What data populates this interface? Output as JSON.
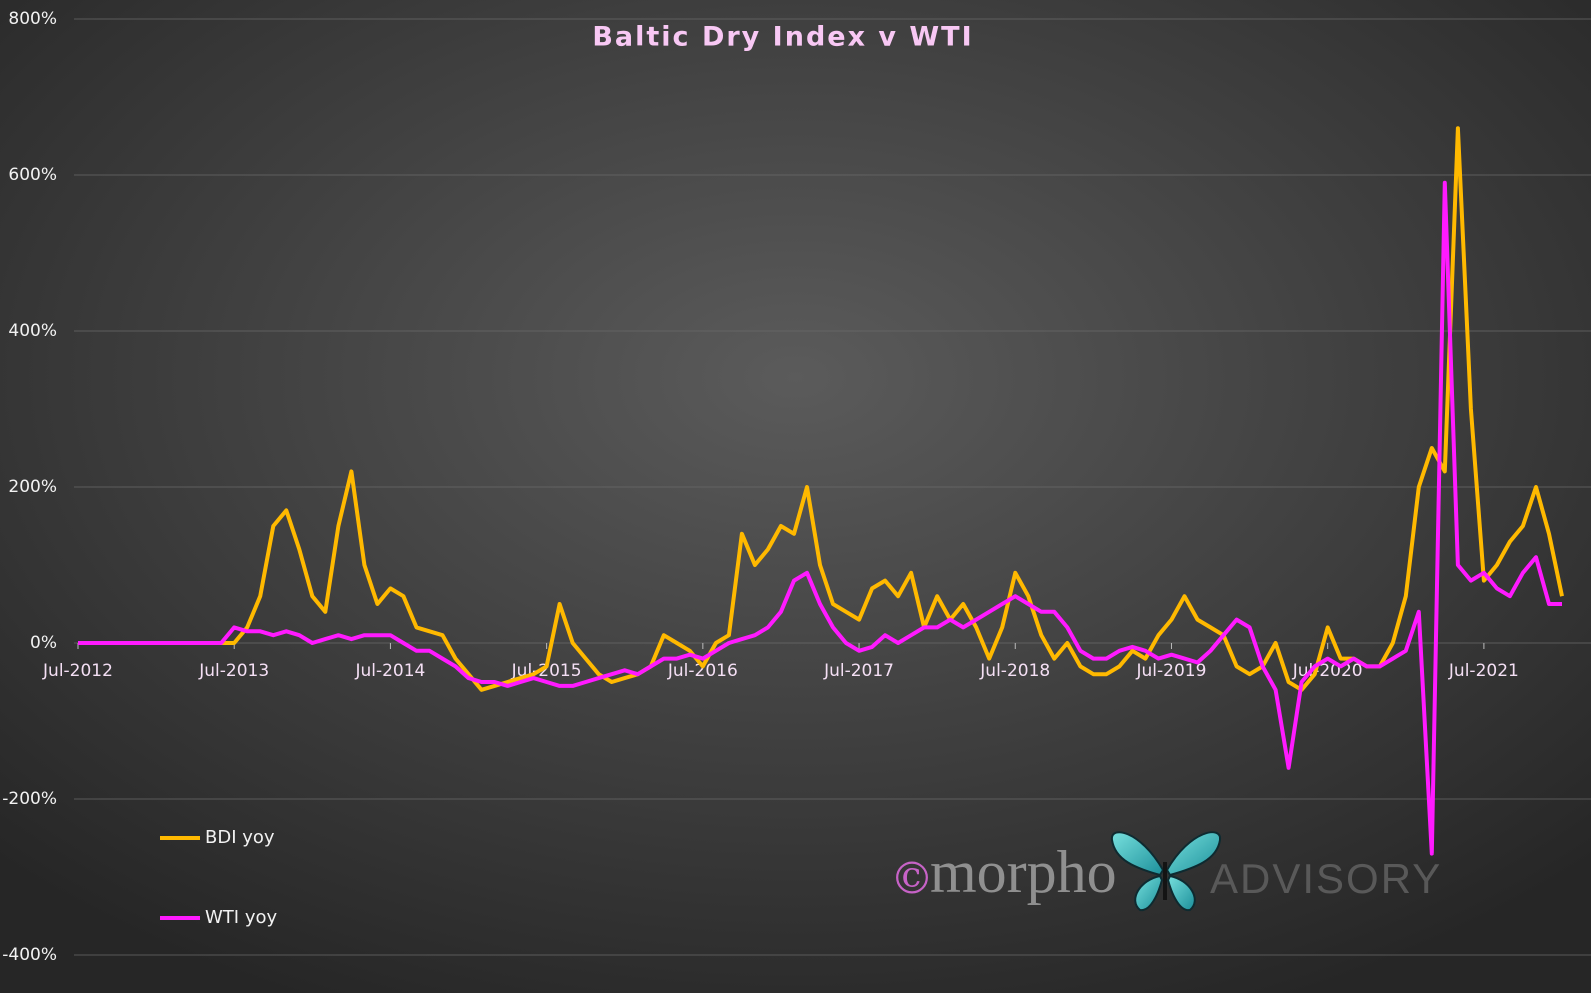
{
  "chart_data": {
    "type": "line",
    "title": "Baltic Dry Index v WTI",
    "x": [
      "2012-07",
      "2012-08",
      "2012-09",
      "2012-10",
      "2012-11",
      "2012-12",
      "2013-01",
      "2013-02",
      "2013-03",
      "2013-04",
      "2013-05",
      "2013-06",
      "2013-07",
      "2013-08",
      "2013-09",
      "2013-10",
      "2013-11",
      "2013-12",
      "2014-01",
      "2014-02",
      "2014-03",
      "2014-04",
      "2014-05",
      "2014-06",
      "2014-07",
      "2014-08",
      "2014-09",
      "2014-10",
      "2014-11",
      "2014-12",
      "2015-01",
      "2015-02",
      "2015-03",
      "2015-04",
      "2015-05",
      "2015-06",
      "2015-07",
      "2015-08",
      "2015-09",
      "2015-10",
      "2015-11",
      "2015-12",
      "2016-01",
      "2016-02",
      "2016-03",
      "2016-04",
      "2016-05",
      "2016-06",
      "2016-07",
      "2016-08",
      "2016-09",
      "2016-10",
      "2016-11",
      "2016-12",
      "2017-01",
      "2017-02",
      "2017-03",
      "2017-04",
      "2017-05",
      "2017-06",
      "2017-07",
      "2017-08",
      "2017-09",
      "2017-10",
      "2017-11",
      "2017-12",
      "2018-01",
      "2018-02",
      "2018-03",
      "2018-04",
      "2018-05",
      "2018-06",
      "2018-07",
      "2018-08",
      "2018-09",
      "2018-10",
      "2018-11",
      "2018-12",
      "2019-01",
      "2019-02",
      "2019-03",
      "2019-04",
      "2019-05",
      "2019-06",
      "2019-07",
      "2019-08",
      "2019-09",
      "2019-10",
      "2019-11",
      "2019-12",
      "2020-01",
      "2020-02",
      "2020-03",
      "2020-04",
      "2020-05",
      "2020-06",
      "2020-07",
      "2020-08",
      "2020-09",
      "2020-10",
      "2020-11",
      "2020-12",
      "2021-01",
      "2021-02",
      "2021-03",
      "2021-04",
      "2021-05",
      "2021-06",
      "2021-07",
      "2021-08",
      "2021-09",
      "2021-10",
      "2021-11",
      "2021-12",
      "2022-01"
    ],
    "series": [
      {
        "name": "BDI yoy",
        "color": "#ffb900",
        "values": [
          0,
          0,
          0,
          0,
          0,
          0,
          0,
          0,
          0,
          0,
          0,
          0,
          0,
          20,
          60,
          150,
          170,
          120,
          60,
          40,
          150,
          220,
          100,
          50,
          70,
          60,
          20,
          15,
          10,
          -20,
          -40,
          -60,
          -55,
          -50,
          -45,
          -40,
          -30,
          50,
          0,
          -20,
          -40,
          -50,
          -45,
          -40,
          -30,
          10,
          0,
          -10,
          -30,
          0,
          10,
          140,
          100,
          120,
          150,
          140,
          200,
          100,
          50,
          40,
          30,
          70,
          80,
          60,
          90,
          20,
          60,
          30,
          50,
          20,
          -20,
          20,
          90,
          60,
          10,
          -20,
          0,
          -30,
          -40,
          -40,
          -30,
          -10,
          -20,
          10,
          30,
          60,
          30,
          20,
          10,
          -30,
          -40,
          -30,
          0,
          -50,
          -60,
          -40,
          20,
          -20,
          -20,
          -30,
          -30,
          0,
          60,
          200,
          250,
          220,
          660,
          300,
          80,
          100,
          130,
          150,
          200,
          140,
          60
        ]
      },
      {
        "name": "WTI yoy",
        "color": "#ff1aff",
        "values": [
          0,
          0,
          0,
          0,
          0,
          0,
          0,
          0,
          0,
          0,
          0,
          0,
          20,
          15,
          15,
          10,
          15,
          10,
          0,
          5,
          10,
          5,
          10,
          10,
          10,
          0,
          -10,
          -10,
          -20,
          -30,
          -45,
          -50,
          -50,
          -55,
          -50,
          -45,
          -50,
          -55,
          -55,
          -50,
          -45,
          -40,
          -35,
          -40,
          -30,
          -20,
          -20,
          -15,
          -20,
          -10,
          0,
          5,
          10,
          20,
          40,
          80,
          90,
          50,
          20,
          0,
          -10,
          -5,
          10,
          0,
          10,
          20,
          20,
          30,
          20,
          30,
          40,
          50,
          60,
          50,
          40,
          40,
          20,
          -10,
          -20,
          -20,
          -10,
          -5,
          -10,
          -20,
          -15,
          -20,
          -25,
          -10,
          10,
          30,
          20,
          -30,
          -60,
          -160,
          -50,
          -30,
          -20,
          -30,
          -20,
          -30,
          -30,
          -20,
          -10,
          40,
          -270,
          590,
          100,
          80,
          90,
          70,
          60,
          90,
          110,
          50,
          50
        ]
      }
    ],
    "xlim": [
      "2012-07",
      "2022-01"
    ],
    "xticks": [
      {
        "value": "2012-07",
        "label": "Jul-2012"
      },
      {
        "value": "2013-07",
        "label": "Jul-2013"
      },
      {
        "value": "2014-07",
        "label": "Jul-2014"
      },
      {
        "value": "2015-07",
        "label": "Jul-2015"
      },
      {
        "value": "2016-07",
        "label": "Jul-2016"
      },
      {
        "value": "2017-07",
        "label": "Jul-2017"
      },
      {
        "value": "2018-07",
        "label": "Jul-2018"
      },
      {
        "value": "2019-07",
        "label": "Jul-2019"
      },
      {
        "value": "2020-07",
        "label": "Jul-2020"
      },
      {
        "value": "2021-07",
        "label": "Jul-2021"
      }
    ],
    "ylim": [
      -400,
      800
    ],
    "yticks": [
      {
        "value": -400,
        "label": "-400%"
      },
      {
        "value": -200,
        "label": "-200%"
      },
      {
        "value": 0,
        "label": "0%"
      },
      {
        "value": 200,
        "label": "200%"
      },
      {
        "value": 400,
        "label": "400%"
      },
      {
        "value": 600,
        "label": "600%"
      },
      {
        "value": 800,
        "label": "800%"
      }
    ],
    "grid": true,
    "legend": "lower left",
    "watermark": [
      "©",
      "morpho",
      "ADVISORY"
    ]
  }
}
